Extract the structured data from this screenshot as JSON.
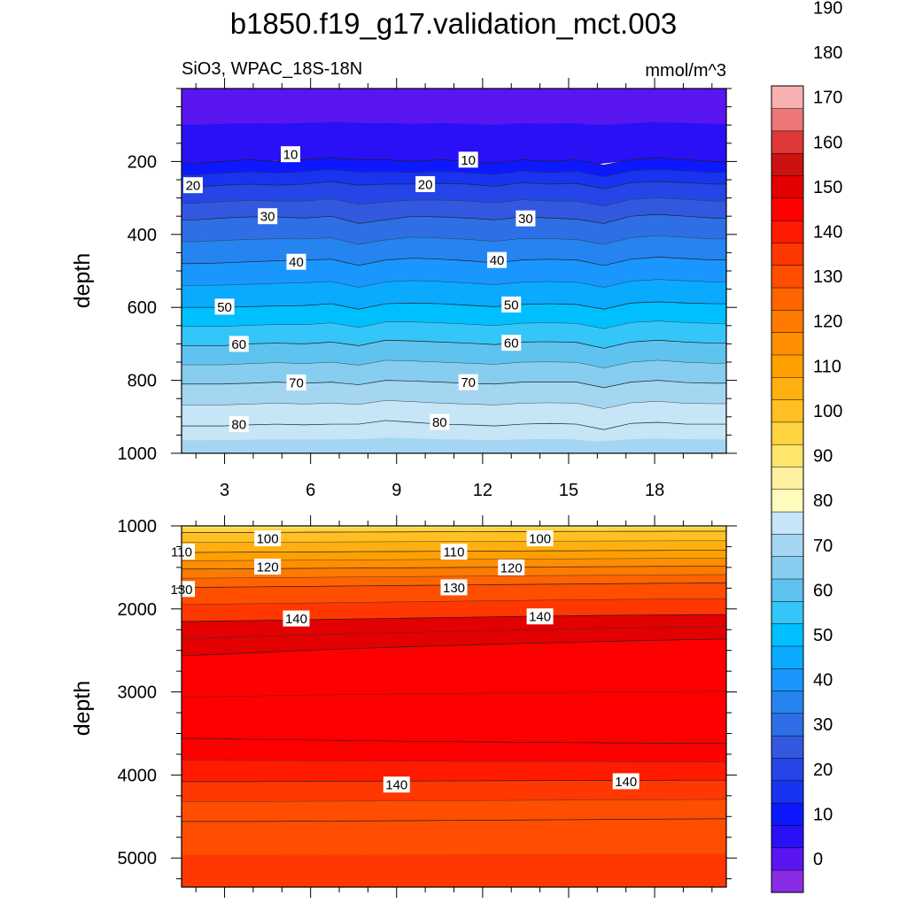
{
  "chart_data": {
    "type": "heatmap",
    "title": "b1850.f19_g17.validation_mct.003",
    "subtitle": "SiO3, WPAC_18S-18N",
    "units": "mmol/m^3",
    "ylabel": "depth",
    "x_ticks": [
      3,
      6,
      9,
      12,
      15,
      18
    ],
    "xlim": [
      1.5,
      20.5
    ],
    "upper_panel": {
      "ylim": [
        1000,
        0
      ],
      "y_ticks": [
        200,
        400,
        600,
        800,
        1000
      ],
      "contour_levels": [
        {
          "level": 10,
          "depth": [
            205,
            200,
            195,
            200,
            195,
            190,
            195,
            195,
            200,
            195,
            200,
            205,
            195,
            200,
            195,
            210,
            195,
            190,
            195,
            200
          ]
        },
        {
          "level": 20,
          "depth": [
            270,
            265,
            262,
            265,
            262,
            255,
            265,
            262,
            262,
            260,
            262,
            268,
            258,
            262,
            260,
            275,
            258,
            255,
            258,
            262
          ]
        },
        {
          "level": 30,
          "depth": [
            360,
            355,
            352,
            352,
            355,
            350,
            370,
            360,
            350,
            352,
            355,
            360,
            352,
            355,
            358,
            370,
            350,
            345,
            350,
            355
          ]
        },
        {
          "level": 40,
          "depth": [
            480,
            478,
            475,
            472,
            470,
            468,
            485,
            470,
            465,
            468,
            472,
            478,
            470,
            468,
            470,
            485,
            468,
            462,
            466,
            470
          ]
        },
        {
          "level": 50,
          "depth": [
            600,
            600,
            598,
            596,
            595,
            590,
            605,
            590,
            588,
            590,
            594,
            598,
            592,
            590,
            592,
            605,
            588,
            585,
            588,
            590
          ]
        },
        {
          "level": 60,
          "depth": [
            705,
            705,
            700,
            698,
            700,
            695,
            705,
            690,
            692,
            695,
            698,
            702,
            695,
            694,
            696,
            712,
            695,
            690,
            695,
            698
          ]
        },
        {
          "level": 70,
          "depth": [
            810,
            810,
            808,
            805,
            808,
            805,
            812,
            800,
            802,
            805,
            808,
            810,
            805,
            805,
            805,
            820,
            805,
            800,
            806,
            808
          ]
        },
        {
          "level": 80,
          "depth": [
            925,
            925,
            922,
            920,
            922,
            920,
            920,
            910,
            915,
            920,
            922,
            925,
            920,
            918,
            920,
            935,
            918,
            915,
            920,
            920
          ]
        }
      ],
      "labels": [
        {
          "text": "10",
          "x": 5.3,
          "depth": 180
        },
        {
          "text": "10",
          "x": 11.5,
          "depth": 195
        },
        {
          "text": "20",
          "x": 1.9,
          "depth": 265
        },
        {
          "text": "20",
          "x": 10.0,
          "depth": 262
        },
        {
          "text": "30",
          "x": 4.5,
          "depth": 350
        },
        {
          "text": "30",
          "x": 13.5,
          "depth": 356
        },
        {
          "text": "40",
          "x": 5.5,
          "depth": 475
        },
        {
          "text": "40",
          "x": 12.5,
          "depth": 470
        },
        {
          "text": "50",
          "x": 3.0,
          "depth": 598
        },
        {
          "text": "50",
          "x": 13.0,
          "depth": 592
        },
        {
          "text": "60",
          "x": 3.5,
          "depth": 700
        },
        {
          "text": "60",
          "x": 13.0,
          "depth": 697
        },
        {
          "text": "70",
          "x": 5.5,
          "depth": 806
        },
        {
          "text": "70",
          "x": 11.5,
          "depth": 805
        },
        {
          "text": "80",
          "x": 3.5,
          "depth": 920
        },
        {
          "text": "80",
          "x": 10.5,
          "depth": 914
        }
      ]
    },
    "lower_panel": {
      "ylim": [
        5350,
        1000
      ],
      "y_ticks": [
        1000,
        2000,
        3000,
        4000,
        5000
      ],
      "contour_levels": [
        {
          "level": 100,
          "depth": [
            1080,
            1080,
            1080,
            1078,
            1076,
            1075,
            1074,
            1073,
            1072,
            1071,
            1070,
            1069,
            1068,
            1067,
            1066,
            1066,
            1065,
            1065,
            1064,
            1064
          ]
        },
        {
          "level": 110,
          "depth": [
            1320,
            1318,
            1316,
            1315,
            1313,
            1312,
            1310,
            1309,
            1308,
            1306,
            1305,
            1304,
            1302,
            1300,
            1300,
            1298,
            1297,
            1296,
            1295,
            1295
          ]
        },
        {
          "level": 120,
          "depth": [
            1520,
            1518,
            1516,
            1514,
            1512,
            1510,
            1508,
            1506,
            1504,
            1502,
            1500,
            1498,
            1496,
            1494,
            1493,
            1491,
            1490,
            1488,
            1487,
            1486
          ]
        },
        {
          "level": 130,
          "depth": [
            1740,
            1738,
            1735,
            1732,
            1730,
            1726,
            1723,
            1720,
            1717,
            1714,
            1711,
            1708,
            1705,
            1702,
            1700,
            1697,
            1694,
            1692,
            1690,
            1688
          ]
        },
        {
          "level": 140,
          "depth": [
            2150,
            2145,
            2140,
            2135,
            2130,
            2125,
            2120,
            2115,
            2110,
            2105,
            2100,
            2095,
            2090,
            2085,
            2082,
            2078,
            2075,
            2072,
            2070,
            2068
          ]
        },
        {
          "level": 150,
          "depth": [
            2560,
            2545,
            2530,
            2515,
            2500,
            2488,
            2476,
            2465,
            2454,
            2444,
            2434,
            2425,
            2416,
            2408,
            2400,
            2392,
            2385,
            2378,
            2372,
            2366
          ]
        },
        {
          "level": 150,
          "depth": [
            3560,
            3565,
            3570,
            3574,
            3578,
            3582,
            3586,
            3590,
            3594,
            3597,
            3600,
            3603,
            3606,
            3608,
            3610,
            3612,
            3614,
            3616,
            3618,
            3620
          ]
        },
        {
          "level": 140,
          "depth": [
            4080,
            4080,
            4080,
            4078,
            4077,
            4076,
            4075,
            4074,
            4072,
            4071,
            4070,
            4069,
            4068,
            4067,
            4066,
            4065,
            4064,
            4063,
            4062,
            4062
          ]
        },
        {
          "level": 130,
          "depth": [
            4560,
            4560,
            4560,
            4558,
            4556,
            4555,
            4553,
            4552,
            4550,
            4548,
            4546,
            4544,
            4542,
            4540,
            4538,
            4536,
            4534,
            4532,
            4530,
            4528
          ]
        }
      ],
      "labels": [
        {
          "text": "100",
          "x": 4.5,
          "depth": 1150
        },
        {
          "text": "110",
          "x": 1.5,
          "depth": 1310
        },
        {
          "text": "110",
          "x": 11.0,
          "depth": 1310
        },
        {
          "text": "120",
          "x": 4.5,
          "depth": 1490
        },
        {
          "text": "120",
          "x": 13.0,
          "depth": 1500
        },
        {
          "text": "100",
          "x": 14.0,
          "depth": 1150
        },
        {
          "text": "130",
          "x": 1.5,
          "depth": 1760
        },
        {
          "text": "130",
          "x": 11.0,
          "depth": 1740
        },
        {
          "text": "140",
          "x": 5.5,
          "depth": 2115
        },
        {
          "text": "140",
          "x": 14.0,
          "depth": 2090
        },
        {
          "text": "140",
          "x": 9.0,
          "depth": 4115
        },
        {
          "text": "140",
          "x": 17.0,
          "depth": 4075
        }
      ]
    },
    "colorbar": {
      "levels": [
        -5,
        0,
        5,
        10,
        15,
        20,
        25,
        30,
        35,
        40,
        45,
        50,
        55,
        60,
        65,
        70,
        75,
        80,
        85,
        90,
        95,
        100,
        105,
        110,
        115,
        120,
        125,
        130,
        135,
        140,
        145,
        150,
        155,
        160,
        165,
        170,
        175,
        180,
        185,
        190,
        195
      ],
      "tick_labels": [
        "0",
        "10",
        "20",
        "30",
        "40",
        "50",
        "60",
        "70",
        "80",
        "90",
        "100",
        "110",
        "120",
        "130",
        "140",
        "150",
        "160",
        "170",
        "180",
        "190"
      ],
      "colors": [
        "#8a2be6",
        "#5a16f0",
        "#2a10f4",
        "#0d18ff",
        "#1834f0",
        "#2545e6",
        "#3358e0",
        "#2e6fe6",
        "#2584f0",
        "#1a96ff",
        "#0aaaff",
        "#00bfff",
        "#34c6f8",
        "#5ec3ef",
        "#86cdf0",
        "#a4d6f2",
        "#c6e5f6",
        "#fffbbd",
        "#fff0a0",
        "#ffe56a",
        "#ffd340",
        "#ffc023",
        "#ffb010",
        "#ffa000",
        "#ff8e00",
        "#ff7a00",
        "#ff6400",
        "#ff4e00",
        "#ff3700",
        "#ff1a00",
        "#ff0000",
        "#e20000",
        "#cc1111",
        "#df3838",
        "#ed7777",
        "#f7b1b1"
      ]
    }
  }
}
